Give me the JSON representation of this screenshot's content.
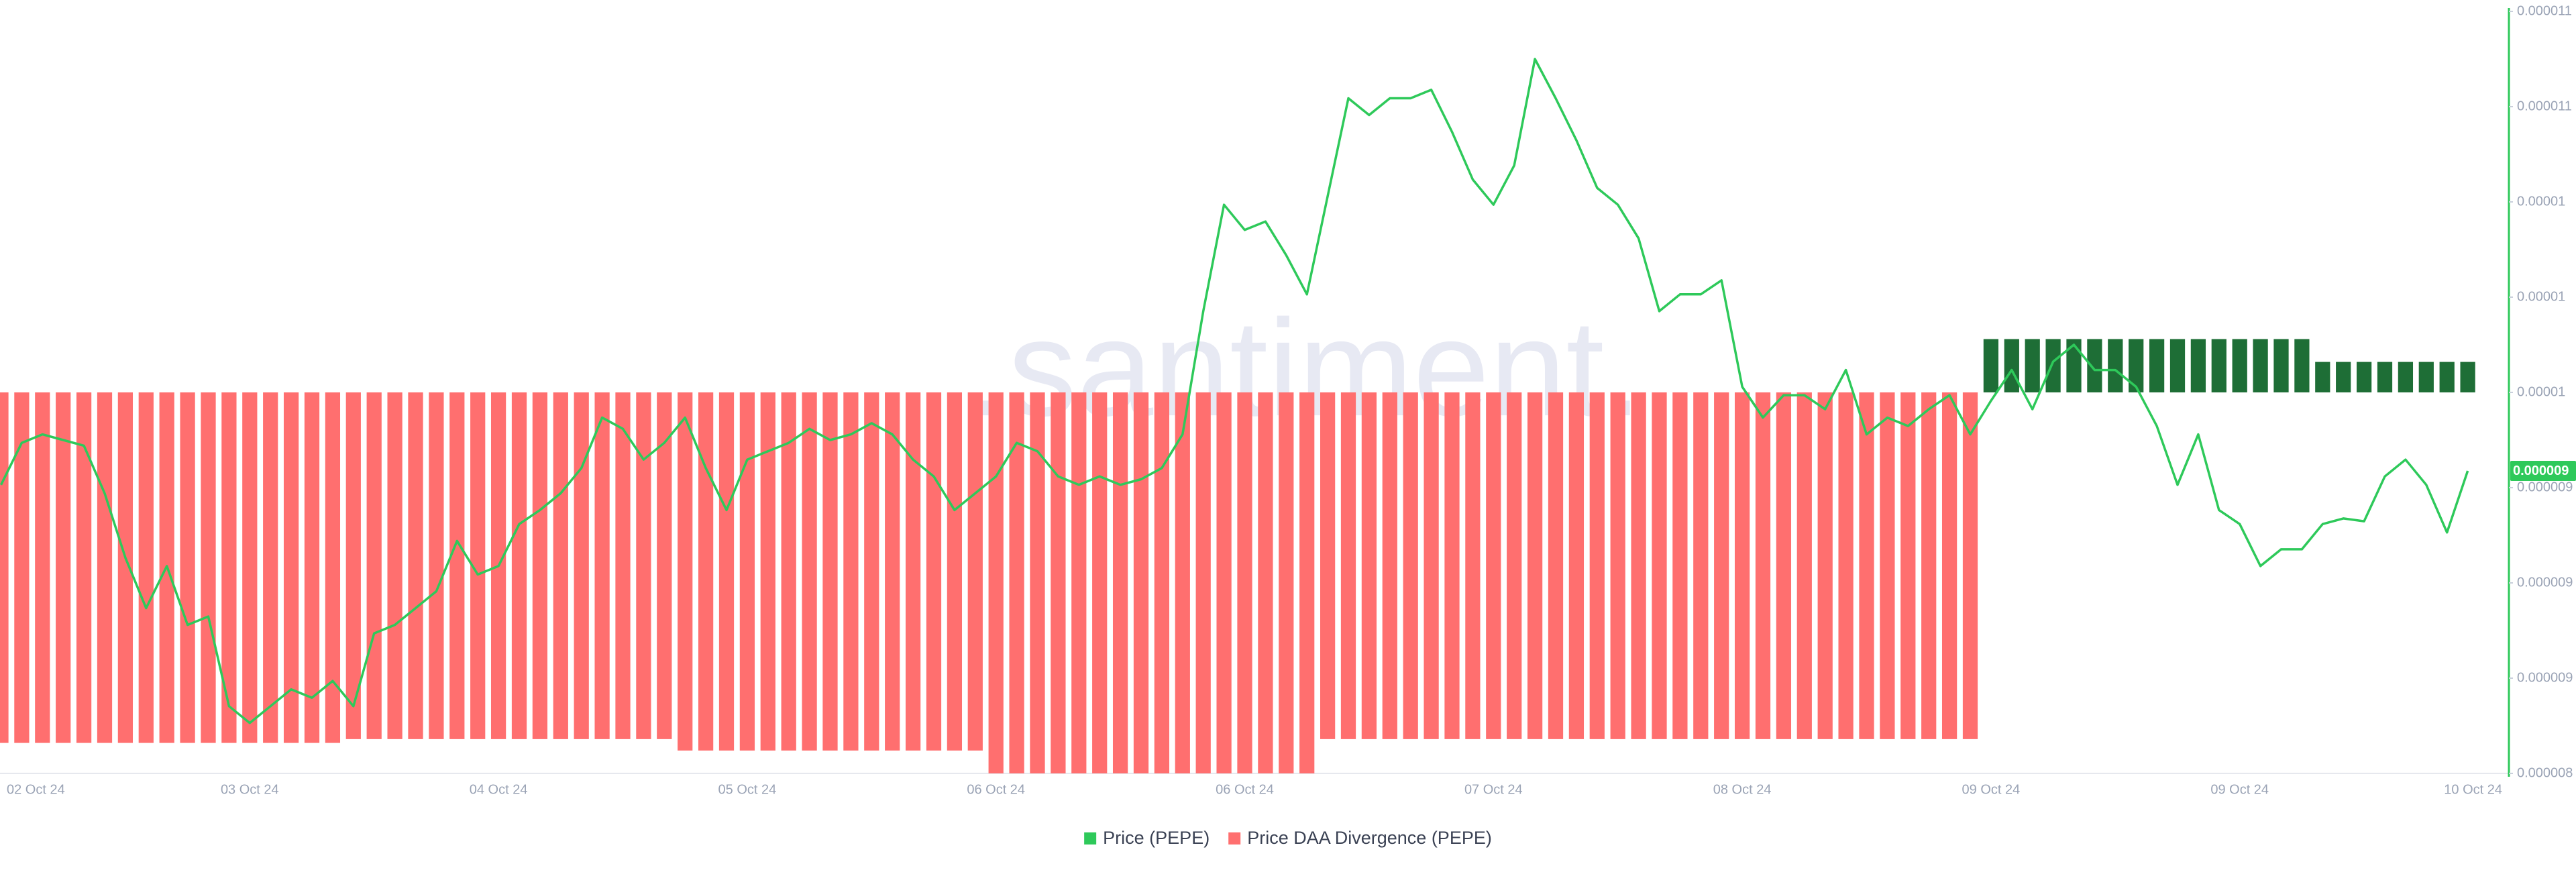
{
  "chart_data": {
    "type": "line",
    "watermark": ".santiment.",
    "categories": [
      "02 Oct 24",
      null,
      null,
      null,
      null,
      null,
      null,
      null,
      null,
      null,
      null,
      null,
      "03 Oct 24",
      null,
      null,
      null,
      null,
      null,
      null,
      null,
      null,
      null,
      null,
      null,
      "04 Oct 24",
      null,
      null,
      null,
      null,
      null,
      null,
      null,
      null,
      null,
      null,
      null,
      "05 Oct 24",
      null,
      null,
      null,
      null,
      null,
      null,
      null,
      null,
      null,
      null,
      null,
      "06 Oct 24",
      null,
      null,
      null,
      null,
      null,
      null,
      null,
      null,
      null,
      null,
      null,
      "06 Oct 24",
      null,
      null,
      null,
      null,
      null,
      null,
      null,
      null,
      null,
      null,
      null,
      "07 Oct 24",
      null,
      null,
      null,
      null,
      null,
      null,
      null,
      null,
      null,
      null,
      null,
      "08 Oct 24",
      null,
      null,
      null,
      null,
      null,
      null,
      null,
      null,
      null,
      null,
      null,
      "09 Oct 24",
      null,
      null,
      null,
      null,
      null,
      null,
      null,
      null,
      null,
      null,
      null,
      "09 Oct 24",
      null,
      null,
      null,
      null,
      null,
      null,
      null,
      null,
      null,
      null,
      null,
      "10 Oct 24"
    ],
    "series": [
      {
        "name": "Price (PEPE)",
        "type": "line",
        "color": "#2ec95a",
        "values": [
          9.43e-06,
          9.58e-06,
          9.61e-06,
          9.59e-06,
          9.57e-06,
          9.4e-06,
          9.17e-06,
          8.99e-06,
          9.14e-06,
          8.93e-06,
          8.96e-06,
          8.64e-06,
          8.58e-06,
          8.64e-06,
          8.7e-06,
          8.67e-06,
          8.73e-06,
          8.64e-06,
          8.9e-06,
          8.93e-06,
          8.99e-06,
          9.05e-06,
          9.23e-06,
          9.11e-06,
          9.14e-06,
          9.29e-06,
          9.34e-06,
          9.4e-06,
          9.49e-06,
          9.67e-06,
          9.63e-06,
          9.52e-06,
          9.58e-06,
          9.67e-06,
          9.49e-06,
          9.34e-06,
          9.52e-06,
          9.55e-06,
          9.58e-06,
          9.63e-06,
          9.59e-06,
          9.61e-06,
          9.65e-06,
          9.61e-06,
          9.52e-06,
          9.46e-06,
          9.34e-06,
          9.4e-06,
          9.46e-06,
          9.58e-06,
          9.55e-06,
          9.46e-06,
          9.43e-06,
          9.46e-06,
          9.43e-06,
          9.45e-06,
          9.49e-06,
          9.61e-06,
          1.005e-05,
          1.043e-05,
          1.034e-05,
          1.037e-05,
          1.025e-05,
          1.011e-05,
          1.046e-05,
          1.081e-05,
          1.075e-05,
          1.081e-05,
          1.081e-05,
          1.084e-05,
          1.069e-05,
          1.052e-05,
          1.043e-05,
          1.057e-05,
          1.095e-05,
          1.081e-05,
          1.066e-05,
          1.049e-05,
          1.043e-05,
          1.031e-05,
          1.005e-05,
          1.011e-05,
          1.011e-05,
          1.016e-05,
          9.78e-06,
          9.67e-06,
          9.75e-06,
          9.75e-06,
          9.7e-06,
          9.84e-06,
          9.61e-06,
          9.67e-06,
          9.64e-06,
          9.7e-06,
          9.75e-06,
          9.61e-06,
          9.73e-06,
          9.84e-06,
          9.7e-06,
          9.87e-06,
          9.93e-06,
          9.84e-06,
          9.84e-06,
          9.78e-06,
          9.64e-06,
          9.43e-06,
          9.61e-06,
          9.34e-06,
          9.29e-06,
          9.14e-06,
          9.2e-06,
          9.2e-06,
          9.29e-06,
          9.31e-06,
          9.3e-06,
          9.46e-06,
          9.52e-06,
          9.43e-06,
          9.26e-06,
          9.48e-06,
          null
        ],
        "value_labels": [
          null,
          null,
          null,
          null,
          null,
          null,
          null,
          null,
          null,
          null,
          null,
          null,
          null,
          null,
          null,
          null,
          null,
          null,
          null,
          null,
          null,
          null,
          null,
          null,
          null,
          null,
          null,
          null,
          null,
          null,
          null,
          null,
          null,
          null,
          null,
          null,
          null,
          null,
          null,
          null,
          null,
          null,
          null,
          null,
          null,
          null,
          null,
          null,
          null,
          null,
          null,
          null,
          null,
          null,
          null,
          null,
          null,
          null,
          null,
          null,
          null,
          null,
          null,
          null,
          null,
          null,
          null,
          null,
          null,
          null,
          null,
          null,
          null,
          null,
          null,
          null,
          null,
          null,
          null,
          null,
          null,
          null,
          null,
          null,
          null,
          null,
          null,
          null,
          null,
          null,
          null,
          null,
          null,
          null,
          null,
          null,
          null,
          null,
          null,
          null,
          null,
          null,
          null,
          null,
          null,
          null,
          null,
          null,
          null,
          null,
          null,
          null,
          null,
          null,
          null,
          null,
          null,
          null,
          null,
          "0.000009",
          null
        ]
      },
      {
        "name": "Price DAA Divergence (PEPE)",
        "type": "bar",
        "axis": "y2",
        "color": "#ff6f6f",
        "positive_color": "#1e6e36",
        "values": [
          -92,
          -92,
          -92,
          -92,
          -92,
          -92,
          -92,
          -92,
          -92,
          -92,
          -92,
          -92,
          -92,
          -92,
          -92,
          -92,
          -92,
          -91,
          -91,
          -91,
          -91,
          -91,
          -91,
          -91,
          -91,
          -91,
          -91,
          -91,
          -91,
          -91,
          -91,
          -91,
          -91,
          -94,
          -94,
          -94,
          -94,
          -94,
          -94,
          -94,
          -94,
          -94,
          -94,
          -94,
          -94,
          -94,
          -94,
          -94,
          -100,
          -100,
          -100,
          -100,
          -100,
          -100,
          -100,
          -100,
          -100,
          -100,
          -100,
          -100,
          -100,
          -100,
          -100,
          -100,
          -91,
          -91,
          -91,
          -91,
          -91,
          -91,
          -91,
          -91,
          -91,
          -91,
          -91,
          -91,
          -91,
          -91,
          -91,
          -91,
          -91,
          -91,
          -91,
          -91,
          -91,
          -91,
          -91,
          -91,
          -91,
          -91,
          -91,
          -91,
          -91,
          -91,
          -91,
          -91,
          14,
          14,
          14,
          14,
          14,
          14,
          14,
          14,
          14,
          14,
          14,
          14,
          14,
          14,
          14,
          14,
          8,
          8,
          8,
          8,
          8,
          8,
          8,
          8,
          null
        ]
      }
    ],
    "ylim": [
      8.4e-06,
      1.112e-05
    ],
    "yticks": [
      {
        "value": 8.4e-06,
        "label": "0.000008"
      },
      {
        "value": 8.74e-06,
        "label": "0.000009"
      },
      {
        "value": 9.08e-06,
        "label": "0.000009"
      },
      {
        "value": 9.42e-06,
        "label": "0.000009"
      },
      {
        "value": 9.76e-06,
        "label": "0.00001"
      },
      {
        "value": 1.01e-05,
        "label": "0.00001"
      },
      {
        "value": 1.044e-05,
        "label": "0.00001"
      },
      {
        "value": 1.078e-05,
        "label": "0.000011"
      },
      {
        "value": 1.112e-05,
        "label": "0.000011"
      }
    ],
    "y2lim": [
      -100,
      100
    ],
    "legend": "bottom"
  }
}
